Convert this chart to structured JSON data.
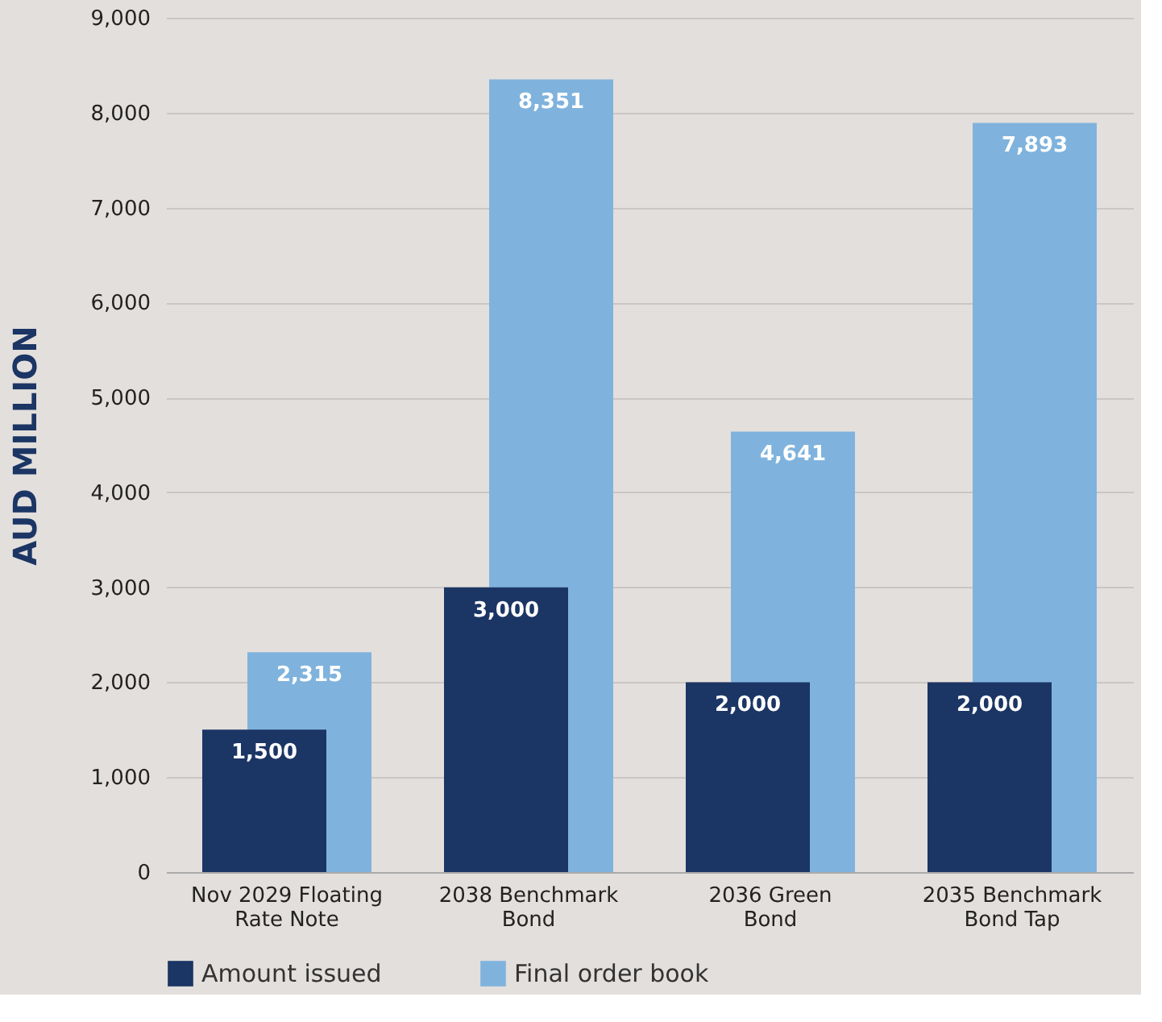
{
  "chart_data": {
    "type": "bar",
    "ylabel": "AUD MILLION",
    "categories": [
      "Nov 2029 Floating Rate Note",
      "2038 Benchmark Bond",
      "2036 Green Bond",
      "2035 Benchmark Bond Tap"
    ],
    "series": [
      {
        "name": "Amount issued",
        "color": "#1b3564",
        "values": [
          1500,
          3000,
          2000,
          2000
        ],
        "value_labels": [
          "1,500",
          "3,000",
          "2,000",
          "2,000"
        ]
      },
      {
        "name": "Final order book",
        "color": "#7fb3dd",
        "values": [
          2315,
          8351,
          4641,
          7893
        ],
        "value_labels": [
          "2,315",
          "8,351",
          "4,641",
          "7,893"
        ]
      }
    ],
    "ylim": [
      0,
      9000
    ],
    "yticks": [
      0,
      {
        "value": 1000,
        "label": "1,000"
      },
      {
        "value": 2000,
        "label": "2,000"
      },
      {
        "value": 3000,
        "label": "3,000"
      },
      {
        "value": 4000,
        "label": "4,000"
      },
      {
        "value": 5000,
        "label": "5,000"
      },
      {
        "value": 6000,
        "label": "6,000"
      },
      {
        "value": 7000,
        "label": "7,000"
      },
      {
        "value": 8000,
        "label": "8,000"
      },
      {
        "value": 9000,
        "label": "9,000"
      }
    ],
    "grid": "y",
    "legend": "bottom"
  }
}
